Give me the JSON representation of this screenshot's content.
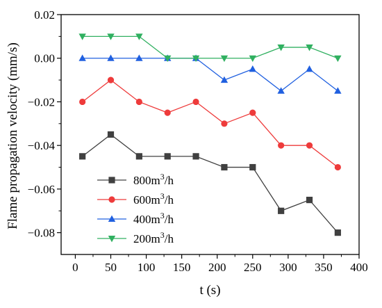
{
  "chart_data": {
    "type": "line",
    "xlabel": "t (s)",
    "ylabel": "Flame propagation velocity (mm/s)",
    "xlim": [
      -20,
      400
    ],
    "ylim": [
      -0.09,
      0.02
    ],
    "xticks": [
      0,
      50,
      100,
      150,
      200,
      250,
      300,
      350,
      400
    ],
    "xtick_labels": [
      "0",
      "50",
      "100",
      "150",
      "200",
      "250",
      "300",
      "350",
      "400"
    ],
    "yticks": [
      -0.08,
      -0.06,
      -0.04,
      -0.02,
      0.0,
      0.02
    ],
    "ytick_labels": [
      "−0.08",
      "−0.06",
      "−0.04",
      "−0.02",
      "0.00",
      "0.02"
    ],
    "x": [
      10,
      50,
      90,
      130,
      170,
      210,
      250,
      290,
      330,
      370
    ],
    "legend_position": "bottom-left",
    "grid": false,
    "series": [
      {
        "name": "800",
        "unit": "m",
        "sup": "3",
        "tail": "/h",
        "marker": "square",
        "color": "#404040",
        "values": [
          -0.045,
          -0.035,
          -0.045,
          -0.045,
          -0.045,
          -0.05,
          -0.05,
          -0.07,
          -0.065,
          -0.08
        ]
      },
      {
        "name": "600",
        "unit": "m",
        "sup": "3",
        "tail": "/h",
        "marker": "circle",
        "color": "#ee3b3b",
        "values": [
          -0.02,
          -0.01,
          -0.02,
          -0.025,
          -0.02,
          -0.03,
          -0.025,
          -0.04,
          -0.04,
          -0.05
        ]
      },
      {
        "name": "400",
        "unit": "m",
        "sup": "3",
        "tail": "/h",
        "marker": "triangle-up",
        "color": "#2060e0",
        "values": [
          0.0,
          0.0,
          0.0,
          0.0,
          0.0,
          -0.01,
          -0.005,
          -0.015,
          -0.005,
          -0.015
        ]
      },
      {
        "name": "200",
        "unit": "m",
        "sup": "3",
        "tail": "/h",
        "marker": "triangle-down",
        "color": "#30b060",
        "values": [
          0.01,
          0.01,
          0.01,
          0.0,
          0.0,
          0.0,
          0.0,
          0.005,
          0.005,
          0.0
        ]
      }
    ]
  }
}
